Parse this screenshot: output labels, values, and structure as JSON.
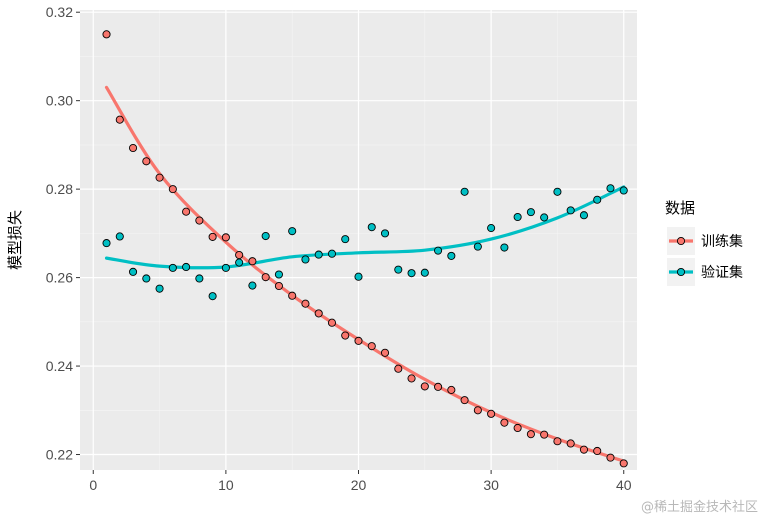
{
  "chart_data": {
    "type": "scatter",
    "title": "",
    "xlabel": "",
    "ylabel": "模型损失",
    "xlim": [
      -1,
      41
    ],
    "ylim": [
      0.2165,
      0.3205
    ],
    "x_ticks": [
      0,
      10,
      20,
      30,
      40
    ],
    "y_ticks": [
      0.22,
      0.24,
      0.26,
      0.28,
      0.3,
      0.32
    ],
    "y_tick_labels": [
      "0.22",
      "0.24",
      "0.26",
      "0.28",
      "0.30",
      "0.32"
    ],
    "x_tick_labels": [
      "0",
      "10",
      "20",
      "30",
      "40"
    ],
    "grid": true,
    "legend_title": "数据",
    "legend_position": "right",
    "series": [
      {
        "name": "训练集",
        "color": "#F8766D",
        "x": [
          1,
          2,
          3,
          4,
          5,
          6,
          7,
          8,
          9,
          10,
          11,
          12,
          13,
          14,
          15,
          16,
          17,
          18,
          19,
          20,
          21,
          22,
          23,
          24,
          25,
          26,
          27,
          28,
          29,
          30,
          31,
          32,
          33,
          34,
          35,
          36,
          37,
          38,
          39,
          40
        ],
        "y": [
          0.315,
          0.2957,
          0.2893,
          0.2863,
          0.2826,
          0.28,
          0.2749,
          0.2729,
          0.2692,
          0.2691,
          0.2651,
          0.2637,
          0.2601,
          0.2581,
          0.2559,
          0.2541,
          0.2519,
          0.2498,
          0.2469,
          0.2457,
          0.2445,
          0.243,
          0.2394,
          0.2372,
          0.2354,
          0.2353,
          0.2346,
          0.2323,
          0.23,
          0.2292,
          0.2272,
          0.226,
          0.2246,
          0.2245,
          0.223,
          0.2225,
          0.2211,
          0.2208,
          0.2193,
          0.218
        ],
        "smooth": [
          [
            1,
            0.303
          ],
          [
            5,
            0.2835
          ],
          [
            10,
            0.268
          ],
          [
            15,
            0.256
          ],
          [
            20,
            0.246
          ],
          [
            25,
            0.237
          ],
          [
            30,
            0.2295
          ],
          [
            35,
            0.2235
          ],
          [
            40,
            0.2185
          ]
        ]
      },
      {
        "name": "验证集",
        "color": "#00BFC4",
        "x": [
          1,
          2,
          3,
          4,
          5,
          6,
          7,
          8,
          9,
          10,
          11,
          12,
          13,
          14,
          15,
          16,
          17,
          18,
          19,
          20,
          21,
          22,
          23,
          24,
          25,
          26,
          27,
          28,
          29,
          30,
          31,
          32,
          33,
          34,
          35,
          36,
          37,
          38,
          39,
          40
        ],
        "y": [
          0.2678,
          0.2693,
          0.2613,
          0.2598,
          0.2575,
          0.2622,
          0.2624,
          0.2598,
          0.2558,
          0.2622,
          0.2634,
          0.2582,
          0.2694,
          0.2607,
          0.2705,
          0.2641,
          0.2652,
          0.2654,
          0.2687,
          0.2602,
          0.2714,
          0.27,
          0.2618,
          0.261,
          0.2611,
          0.2661,
          0.2649,
          0.2794,
          0.267,
          0.2712,
          0.2668,
          0.2737,
          0.2748,
          0.2736,
          0.2794,
          0.2752,
          0.2741,
          0.2776,
          0.2802,
          0.2797
        ],
        "smooth": [
          [
            1,
            0.2644
          ],
          [
            5,
            0.2626
          ],
          [
            10,
            0.2624
          ],
          [
            15,
            0.2647
          ],
          [
            20,
            0.2656
          ],
          [
            25,
            0.2662
          ],
          [
            30,
            0.2687
          ],
          [
            35,
            0.2735
          ],
          [
            40,
            0.2805
          ]
        ]
      }
    ]
  },
  "watermark": "@稀土掘金技术社区"
}
